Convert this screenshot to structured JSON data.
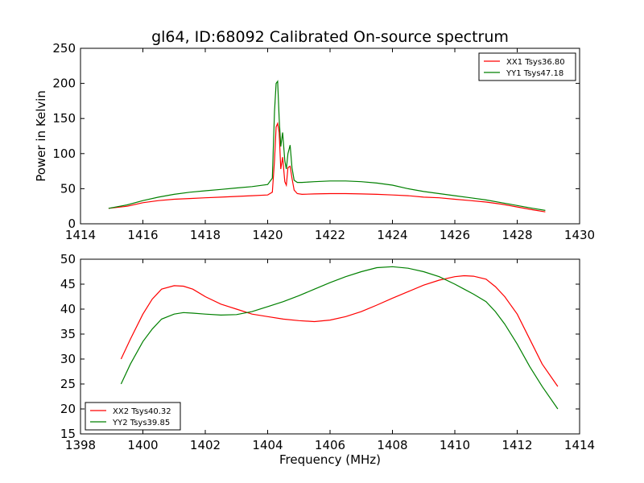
{
  "title": "gl64, ID:68092 Calibrated On-source spectrum",
  "chart_data": [
    {
      "type": "line",
      "ylabel": "Power in Kelvin",
      "xlabel": "",
      "xlim": [
        1414,
        1430
      ],
      "ylim": [
        0,
        250
      ],
      "xticks": [
        1414,
        1416,
        1418,
        1420,
        1422,
        1424,
        1426,
        1428,
        1430
      ],
      "yticks": [
        0,
        50,
        100,
        150,
        200,
        250
      ],
      "legend_position": "top-right",
      "series": [
        {
          "name": "XX1 Tsys36.80",
          "color": "#ff0000",
          "x": [
            1414.9,
            1415.5,
            1416.0,
            1416.5,
            1417.0,
            1417.5,
            1418.0,
            1418.5,
            1419.0,
            1419.5,
            1420.0,
            1420.15,
            1420.22,
            1420.27,
            1420.32,
            1420.37,
            1420.42,
            1420.48,
            1420.55,
            1420.6,
            1420.65,
            1420.72,
            1420.78,
            1420.85,
            1420.95,
            1421.1,
            1421.5,
            1422.0,
            1422.5,
            1423.0,
            1423.5,
            1424.0,
            1424.5,
            1425.0,
            1425.5,
            1426.0,
            1426.5,
            1427.0,
            1427.5,
            1428.0,
            1428.5,
            1428.9
          ],
          "y": [
            22,
            25,
            30,
            33,
            35,
            36,
            37,
            38,
            39,
            40,
            41,
            45,
            90,
            138,
            143,
            130,
            78,
            95,
            60,
            55,
            80,
            82,
            65,
            48,
            43,
            42,
            42.5,
            43,
            43,
            42.5,
            42,
            41,
            40,
            38,
            37,
            35,
            33,
            31,
            28,
            24,
            20,
            17
          ]
        },
        {
          "name": "YY1 Tsys47.18",
          "color": "#008000",
          "x": [
            1414.9,
            1415.5,
            1416.0,
            1416.5,
            1417.0,
            1417.5,
            1418.0,
            1418.5,
            1419.0,
            1419.5,
            1420.0,
            1420.15,
            1420.22,
            1420.27,
            1420.32,
            1420.37,
            1420.42,
            1420.48,
            1420.55,
            1420.6,
            1420.65,
            1420.72,
            1420.78,
            1420.85,
            1420.95,
            1421.1,
            1421.5,
            1422.0,
            1422.5,
            1423.0,
            1423.5,
            1424.0,
            1424.5,
            1425.0,
            1425.5,
            1426.0,
            1426.5,
            1427.0,
            1427.5,
            1428.0,
            1428.5,
            1428.9
          ],
          "y": [
            22,
            27,
            33,
            38,
            42,
            45,
            47,
            49,
            51,
            53,
            56,
            65,
            160,
            200,
            203,
            150,
            110,
            130,
            90,
            78,
            100,
            112,
            80,
            62,
            59,
            59,
            60,
            61,
            61,
            60,
            58,
            55,
            50,
            46,
            43,
            40,
            37,
            34,
            30,
            26,
            22,
            19
          ]
        }
      ]
    },
    {
      "type": "line",
      "xlabel": "Frequency (MHz)",
      "ylabel": "",
      "xlim": [
        1398,
        1414
      ],
      "ylim": [
        15,
        50
      ],
      "xticks": [
        1398,
        1400,
        1402,
        1404,
        1406,
        1408,
        1410,
        1412,
        1414
      ],
      "yticks": [
        15,
        20,
        25,
        30,
        35,
        40,
        45,
        50
      ],
      "legend_position": "bottom-left",
      "series": [
        {
          "name": "XX2 Tsys40.32",
          "color": "#ff0000",
          "x": [
            1399.3,
            1399.6,
            1400.0,
            1400.3,
            1400.6,
            1401.0,
            1401.3,
            1401.6,
            1402.0,
            1402.5,
            1403.0,
            1403.5,
            1404.0,
            1404.5,
            1405.0,
            1405.5,
            1406.0,
            1406.5,
            1407.0,
            1407.5,
            1408.0,
            1408.5,
            1409.0,
            1409.5,
            1410.0,
            1410.3,
            1410.6,
            1411.0,
            1411.3,
            1411.6,
            1412.0,
            1412.4,
            1412.8,
            1413.3
          ],
          "y": [
            30,
            34,
            39,
            42,
            44,
            44.7,
            44.6,
            44,
            42.5,
            41,
            40,
            39,
            38.5,
            38,
            37.7,
            37.5,
            37.8,
            38.5,
            39.5,
            40.8,
            42.2,
            43.5,
            44.8,
            45.8,
            46.5,
            46.7,
            46.6,
            46,
            44.5,
            42.5,
            39,
            34,
            29,
            24.5
          ]
        },
        {
          "name": "YY2 Tsys39.85",
          "color": "#008000",
          "x": [
            1399.3,
            1399.6,
            1400.0,
            1400.3,
            1400.6,
            1401.0,
            1401.3,
            1401.6,
            1402.0,
            1402.5,
            1403.0,
            1403.5,
            1404.0,
            1404.5,
            1405.0,
            1405.5,
            1406.0,
            1406.5,
            1407.0,
            1407.5,
            1408.0,
            1408.5,
            1409.0,
            1409.5,
            1410.0,
            1410.3,
            1410.6,
            1411.0,
            1411.3,
            1411.6,
            1412.0,
            1412.4,
            1412.8,
            1413.3
          ],
          "y": [
            25,
            29,
            33.5,
            36,
            38,
            39,
            39.3,
            39.2,
            39,
            38.8,
            38.9,
            39.5,
            40.5,
            41.5,
            42.7,
            44,
            45.3,
            46.5,
            47.5,
            48.3,
            48.5,
            48.2,
            47.5,
            46.5,
            45,
            44,
            43,
            41.5,
            39.5,
            37,
            33,
            28.5,
            24.5,
            20
          ]
        }
      ]
    }
  ]
}
